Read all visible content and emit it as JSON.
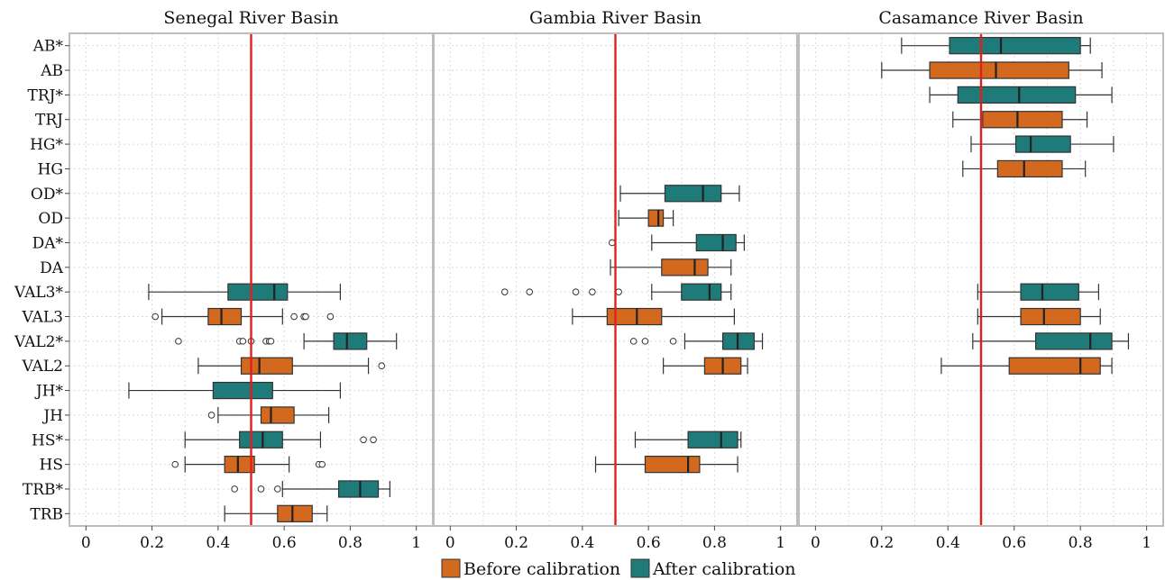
{
  "colors": {
    "before": "#d2691e",
    "after": "#1f7a7a",
    "reference_line": "#e0201e",
    "grid": "#d9d9d9",
    "frame": "#bdbdbd"
  },
  "legend": {
    "before_label": "Before calibration",
    "after_label": "After calibration",
    "position": "bottom"
  },
  "chart_data": {
    "type": "boxplot",
    "categories": [
      "AB*",
      "AB",
      "TRJ*",
      "TRJ",
      "HG*",
      "HG",
      "OD*",
      "OD",
      "DA*",
      "DA",
      "VAL3*",
      "VAL3",
      "VAL2*",
      "VAL2",
      "JH*",
      "JH",
      "HS*",
      "HS",
      "TRB*",
      "TRB"
    ],
    "xlim": [
      -0.05,
      1.05
    ],
    "xticks": [
      0,
      0.2,
      0.4,
      0.6,
      0.8,
      1
    ],
    "xtick_labels": [
      "0",
      "0.2",
      "0.4",
      "0.6",
      "0.8",
      "1"
    ],
    "reference_line": 0.5,
    "grid": true,
    "panels": [
      {
        "title": "Senegal River Basin",
        "boxes": [
          {
            "cat": "VAL3*",
            "group": "after",
            "min": 0.19,
            "q1": 0.43,
            "median": 0.57,
            "q3": 0.61,
            "max": 0.77,
            "outliers": []
          },
          {
            "cat": "VAL3",
            "group": "before",
            "min": 0.23,
            "q1": 0.37,
            "median": 0.41,
            "q3": 0.47,
            "max": 0.595,
            "outliers": [
              0.21,
              0.63,
              0.66,
              0.665,
              0.74
            ]
          },
          {
            "cat": "VAL2*",
            "group": "after",
            "min": 0.66,
            "q1": 0.75,
            "median": 0.79,
            "q3": 0.85,
            "max": 0.94,
            "outliers": [
              0.28,
              0.465,
              0.475,
              0.5,
              0.545,
              0.555,
              0.56
            ]
          },
          {
            "cat": "VAL2",
            "group": "before",
            "min": 0.34,
            "q1": 0.47,
            "median": 0.525,
            "q3": 0.625,
            "max": 0.855,
            "outliers": [
              0.895
            ]
          },
          {
            "cat": "JH*",
            "group": "after",
            "min": 0.13,
            "q1": 0.385,
            "median": 0.5,
            "q3": 0.565,
            "max": 0.77,
            "outliers": []
          },
          {
            "cat": "JH",
            "group": "before",
            "min": 0.4,
            "q1": 0.53,
            "median": 0.56,
            "q3": 0.63,
            "max": 0.735,
            "outliers": [
              0.38
            ]
          },
          {
            "cat": "HS*",
            "group": "after",
            "min": 0.3,
            "q1": 0.465,
            "median": 0.535,
            "q3": 0.595,
            "max": 0.71,
            "outliers": [
              0.84,
              0.87
            ]
          },
          {
            "cat": "HS",
            "group": "before",
            "min": 0.3,
            "q1": 0.42,
            "median": 0.46,
            "q3": 0.51,
            "max": 0.615,
            "outliers": [
              0.27,
              0.705,
              0.715
            ]
          },
          {
            "cat": "TRB*",
            "group": "after",
            "min": 0.595,
            "q1": 0.765,
            "median": 0.83,
            "q3": 0.885,
            "max": 0.92,
            "outliers": [
              0.45,
              0.53,
              0.58
            ]
          },
          {
            "cat": "TRB",
            "group": "before",
            "min": 0.42,
            "q1": 0.58,
            "median": 0.625,
            "q3": 0.685,
            "max": 0.73,
            "outliers": []
          }
        ]
      },
      {
        "title": "Gambia River Basin",
        "boxes": [
          {
            "cat": "OD*",
            "group": "after",
            "min": 0.515,
            "q1": 0.65,
            "median": 0.765,
            "q3": 0.82,
            "max": 0.875,
            "outliers": []
          },
          {
            "cat": "OD",
            "group": "before",
            "min": 0.51,
            "q1": 0.6,
            "median": 0.63,
            "q3": 0.645,
            "max": 0.675,
            "outliers": []
          },
          {
            "cat": "DA*",
            "group": "after",
            "min": 0.61,
            "q1": 0.745,
            "median": 0.825,
            "q3": 0.865,
            "max": 0.89,
            "outliers": [
              0.49
            ]
          },
          {
            "cat": "DA",
            "group": "before",
            "min": 0.485,
            "q1": 0.64,
            "median": 0.74,
            "q3": 0.78,
            "max": 0.85,
            "outliers": []
          },
          {
            "cat": "VAL3*",
            "group": "after",
            "min": 0.61,
            "q1": 0.7,
            "median": 0.785,
            "q3": 0.82,
            "max": 0.85,
            "outliers": [
              0.165,
              0.24,
              0.38,
              0.43,
              0.51
            ]
          },
          {
            "cat": "VAL3",
            "group": "before",
            "min": 0.37,
            "q1": 0.475,
            "median": 0.565,
            "q3": 0.64,
            "max": 0.86,
            "outliers": []
          },
          {
            "cat": "VAL2*",
            "group": "after",
            "min": 0.71,
            "q1": 0.825,
            "median": 0.87,
            "q3": 0.92,
            "max": 0.945,
            "outliers": [
              0.555,
              0.59,
              0.675
            ]
          },
          {
            "cat": "VAL2",
            "group": "before",
            "min": 0.645,
            "q1": 0.77,
            "median": 0.825,
            "q3": 0.88,
            "max": 0.9,
            "outliers": []
          },
          {
            "cat": "HS*",
            "group": "after",
            "min": 0.56,
            "q1": 0.72,
            "median": 0.82,
            "q3": 0.87,
            "max": 0.88,
            "outliers": []
          },
          {
            "cat": "HS",
            "group": "before",
            "min": 0.44,
            "q1": 0.59,
            "median": 0.72,
            "q3": 0.755,
            "max": 0.87,
            "outliers": []
          }
        ]
      },
      {
        "title": "Casamance River Basin",
        "boxes": [
          {
            "cat": "AB*",
            "group": "after",
            "min": 0.26,
            "q1": 0.405,
            "median": 0.56,
            "q3": 0.8,
            "max": 0.83,
            "outliers": []
          },
          {
            "cat": "AB",
            "group": "before",
            "min": 0.2,
            "q1": 0.345,
            "median": 0.545,
            "q3": 0.765,
            "max": 0.865,
            "outliers": []
          },
          {
            "cat": "TRJ*",
            "group": "after",
            "min": 0.345,
            "q1": 0.43,
            "median": 0.615,
            "q3": 0.785,
            "max": 0.895,
            "outliers": []
          },
          {
            "cat": "TRJ",
            "group": "before",
            "min": 0.415,
            "q1": 0.505,
            "median": 0.61,
            "q3": 0.745,
            "max": 0.82,
            "outliers": []
          },
          {
            "cat": "HG*",
            "group": "after",
            "min": 0.47,
            "q1": 0.605,
            "median": 0.65,
            "q3": 0.77,
            "max": 0.9,
            "outliers": []
          },
          {
            "cat": "HG",
            "group": "before",
            "min": 0.445,
            "q1": 0.55,
            "median": 0.63,
            "q3": 0.745,
            "max": 0.815,
            "outliers": []
          },
          {
            "cat": "VAL3*",
            "group": "after",
            "min": 0.49,
            "q1": 0.62,
            "median": 0.685,
            "q3": 0.795,
            "max": 0.855,
            "outliers": []
          },
          {
            "cat": "VAL3",
            "group": "before",
            "min": 0.49,
            "q1": 0.62,
            "median": 0.69,
            "q3": 0.8,
            "max": 0.86,
            "outliers": []
          },
          {
            "cat": "VAL2*",
            "group": "after",
            "min": 0.475,
            "q1": 0.665,
            "median": 0.83,
            "q3": 0.895,
            "max": 0.945,
            "outliers": []
          },
          {
            "cat": "VAL2",
            "group": "before",
            "min": 0.38,
            "q1": 0.585,
            "median": 0.8,
            "q3": 0.86,
            "max": 0.895,
            "outliers": []
          }
        ]
      }
    ]
  }
}
